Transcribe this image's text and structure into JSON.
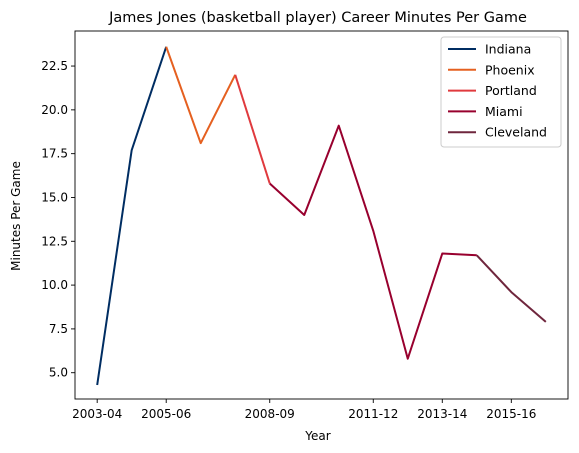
{
  "chart_data": {
    "type": "line",
    "title": "James Jones (basketball player) Career Minutes Per Game",
    "xlabel": "Year",
    "ylabel": "Minutes Per Game",
    "x": [
      "2003-04",
      "2004-05",
      "2005-06",
      "2006-07",
      "2007-08",
      "2008-09",
      "2009-10",
      "2010-11",
      "2011-12",
      "2012-13",
      "2013-14",
      "2014-15",
      "2015-16",
      "2016-17"
    ],
    "xtick_labels": [
      "2003-04",
      "2005-06",
      "2008-09",
      "2011-12",
      "2013-14",
      "2015-16"
    ],
    "ylim": [
      3.5,
      24.5
    ],
    "yticks": [
      5.0,
      7.5,
      10.0,
      12.5,
      15.0,
      17.5,
      20.0,
      22.5
    ],
    "ytick_labels": [
      "5.0",
      "7.5",
      "10.0",
      "12.5",
      "15.0",
      "17.5",
      "20.0",
      "22.5"
    ],
    "grid": false,
    "legend_position": "top-right",
    "series": [
      {
        "name": "Indiana",
        "color": "#002D62",
        "points": [
          [
            "2003-04",
            4.3
          ],
          [
            "2004-05",
            17.7
          ],
          [
            "2005-06",
            23.6
          ]
        ]
      },
      {
        "name": "Phoenix",
        "color": "#E56020",
        "points": [
          [
            "2005-06",
            23.6
          ],
          [
            "2006-07",
            18.1
          ],
          [
            "2007-08",
            22.0
          ]
        ]
      },
      {
        "name": "Portland",
        "color": "#E03A3E",
        "points": [
          [
            "2007-08",
            22.0
          ],
          [
            "2008-09",
            15.8
          ]
        ]
      },
      {
        "name": "Miami",
        "color": "#98002E",
        "points": [
          [
            "2008-09",
            15.8
          ],
          [
            "2009-10",
            14.0
          ],
          [
            "2010-11",
            19.1
          ],
          [
            "2011-12",
            13.1
          ],
          [
            "2012-13",
            5.8
          ],
          [
            "2013-14",
            11.8
          ],
          [
            "2014-15",
            11.7
          ]
        ]
      },
      {
        "name": "Cleveland",
        "color": "#6F263D",
        "points": [
          [
            "2014-15",
            11.7
          ],
          [
            "2015-16",
            9.6
          ],
          [
            "2016-17",
            7.9
          ]
        ]
      }
    ]
  }
}
